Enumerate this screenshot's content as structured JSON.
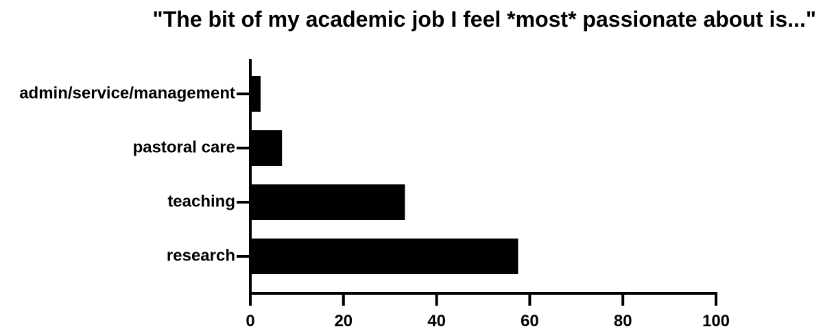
{
  "chart_data": {
    "type": "bar",
    "orientation": "horizontal",
    "title": "\"The bit of my academic job I feel *most* passionate about is...\"",
    "xlabel": "",
    "ylabel": "",
    "categories": [
      "admin/service/management",
      "pastoral care",
      "teaching",
      "research"
    ],
    "values": [
      2.2,
      6.8,
      33.2,
      57.5
    ],
    "xlim": [
      0,
      100
    ],
    "xticks": [
      "0",
      "20",
      "40",
      "60",
      "80",
      "100"
    ],
    "grid": false,
    "legend": "none",
    "bar_color": "#000000"
  }
}
